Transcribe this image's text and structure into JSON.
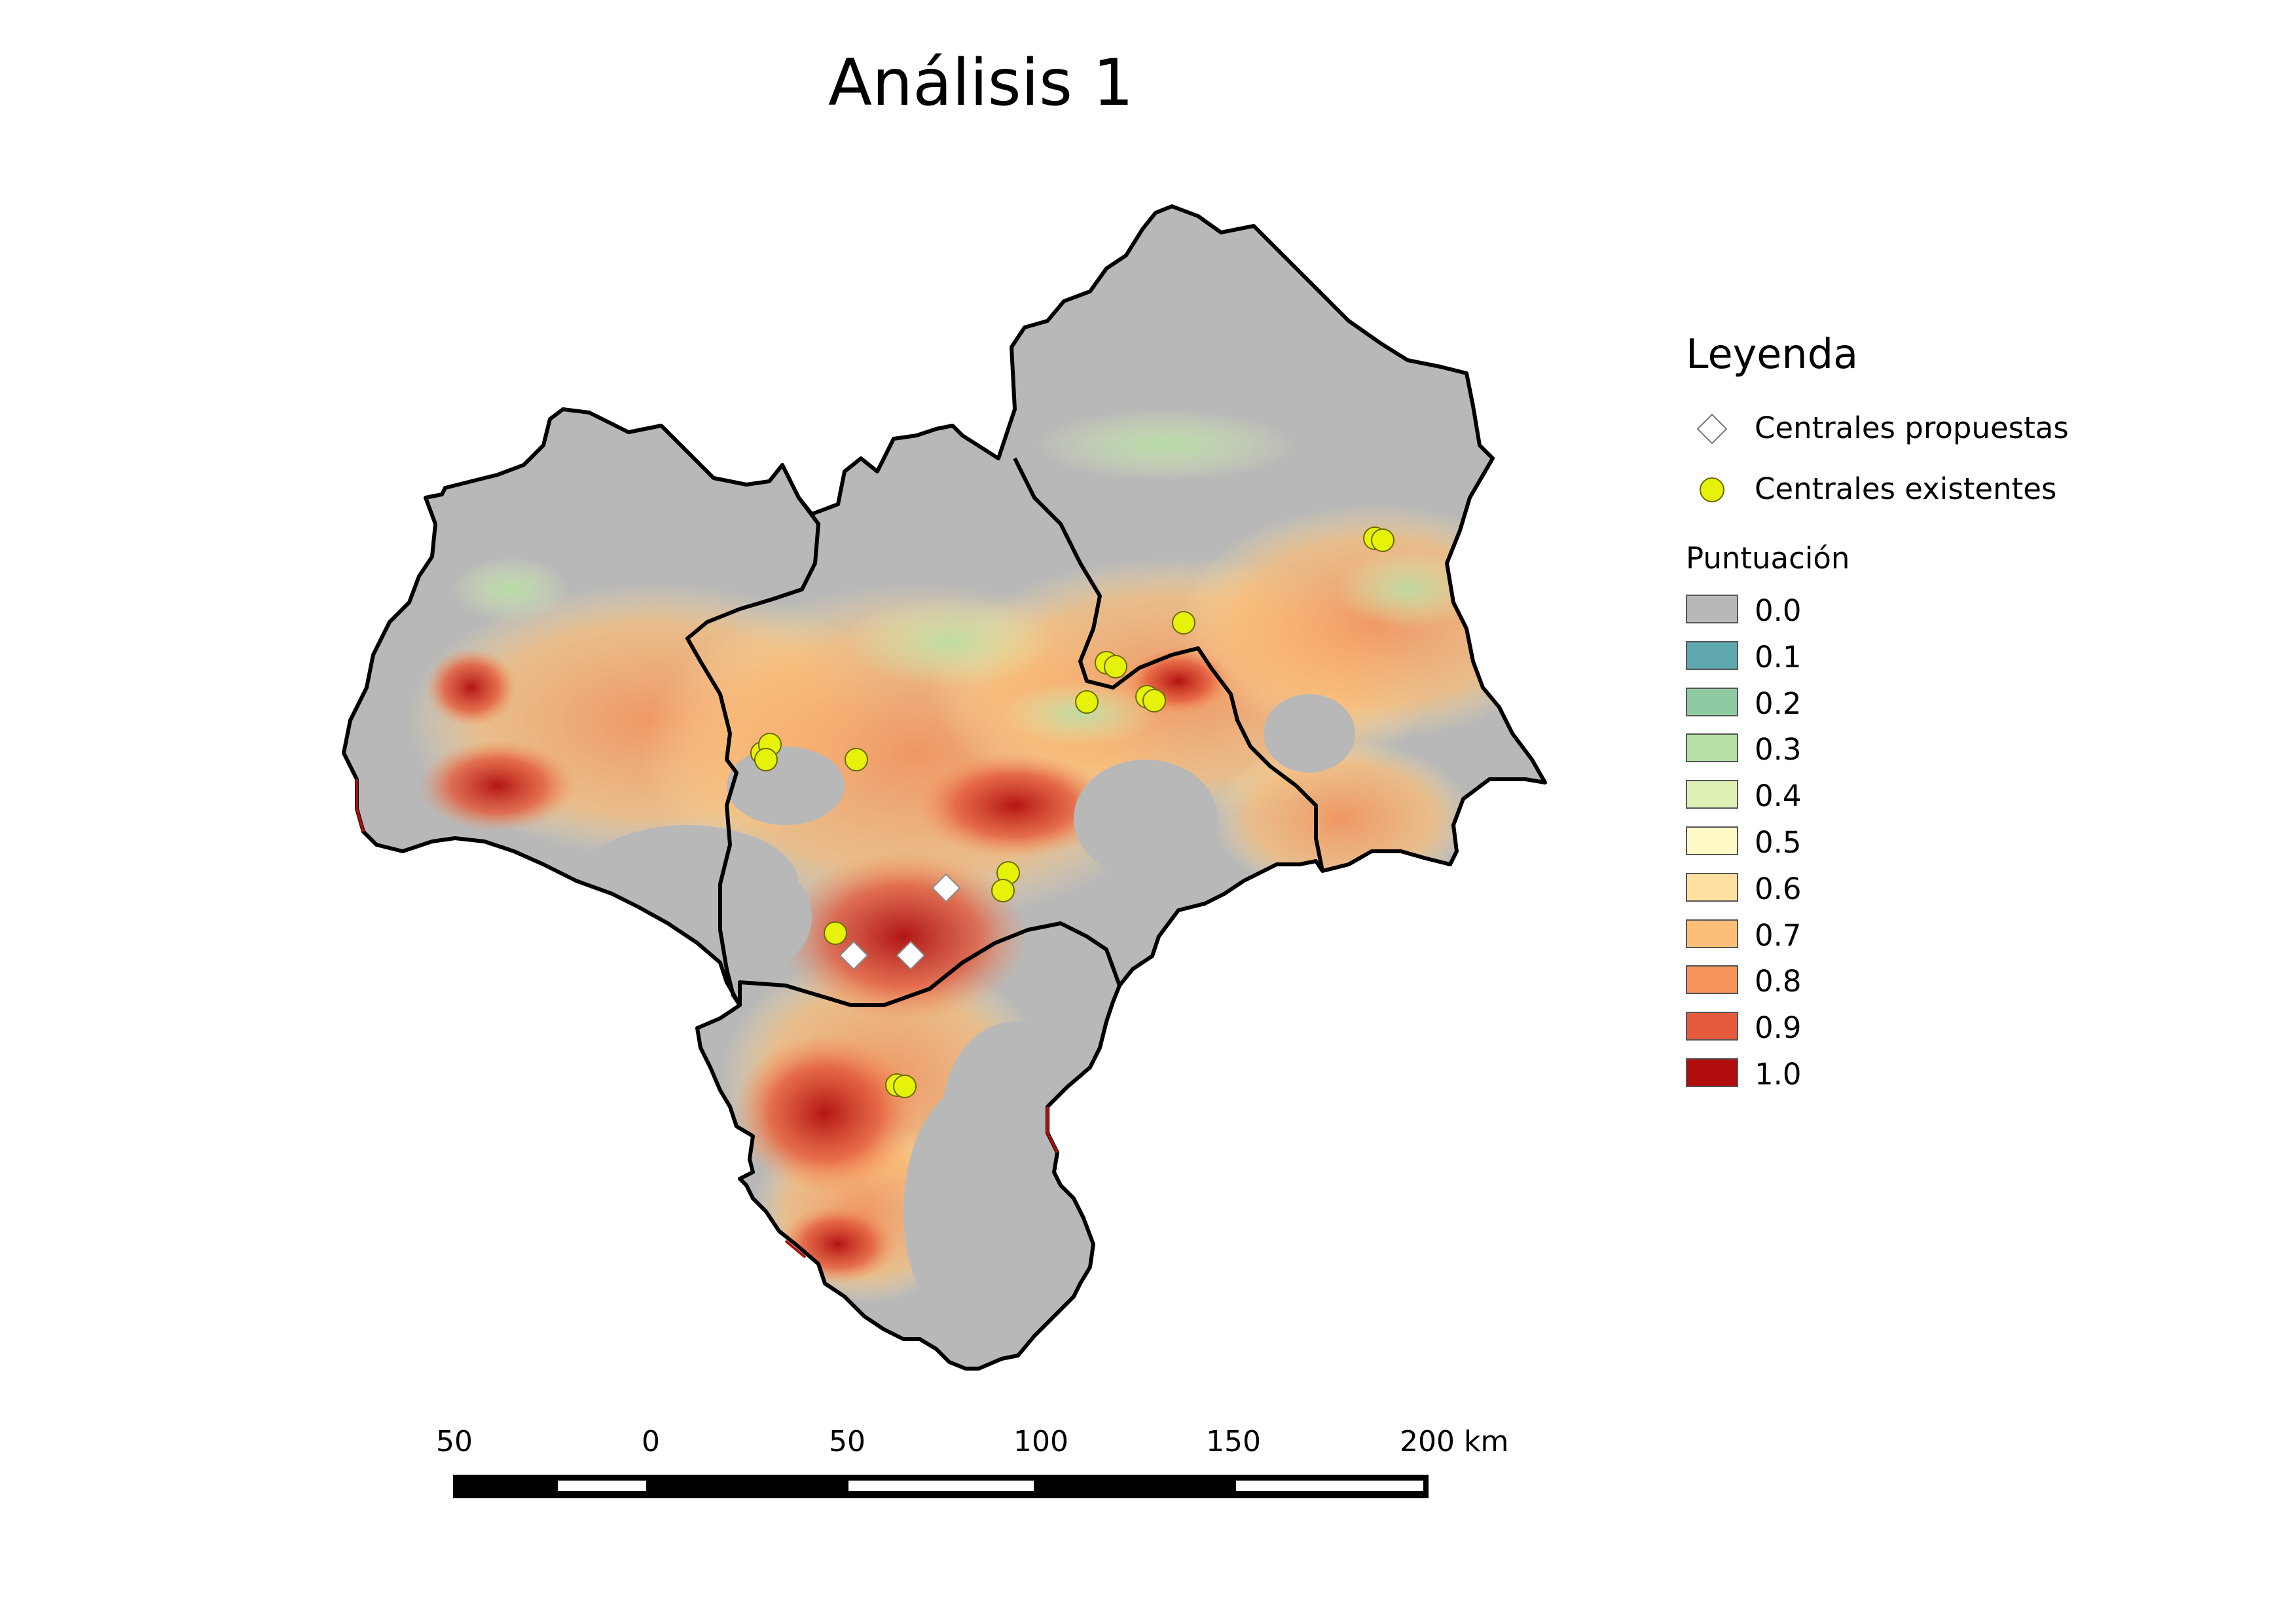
{
  "title": "Análisis 1",
  "legend": {
    "title": "Leyenda",
    "symbols": [
      {
        "name": "Centrales propuestas",
        "icon": "white-diamond-icon",
        "color": "#ffffff"
      },
      {
        "name": "Centrales existentes",
        "icon": "yellow-circle-icon",
        "color": "#e6f20a"
      }
    ],
    "score_title": "Puntuación",
    "classes": [
      {
        "label": "0.0",
        "color": "#b8b8b8"
      },
      {
        "label": "0.1",
        "color": "#5fa8b0"
      },
      {
        "label": "0.2",
        "color": "#8ecba3"
      },
      {
        "label": "0.3",
        "color": "#b7e0a6"
      },
      {
        "label": "0.4",
        "color": "#def0b5"
      },
      {
        "label": "0.5",
        "color": "#fdfac7"
      },
      {
        "label": "0.6",
        "color": "#fee0a0"
      },
      {
        "label": "0.7",
        "color": "#fdbf78"
      },
      {
        "label": "0.8",
        "color": "#f6935a"
      },
      {
        "label": "0.9",
        "color": "#e45a3c"
      },
      {
        "label": "1.0",
        "color": "#b10d0d"
      }
    ]
  },
  "scale_bar": {
    "ticks": [
      "50",
      "0",
      "50",
      "100",
      "150",
      "200 km"
    ]
  }
}
